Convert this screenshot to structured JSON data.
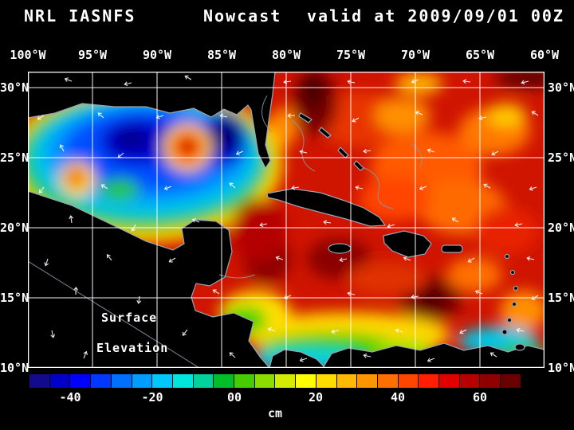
{
  "header": {
    "product": "NRL IASNFS",
    "mode": "Nowcast",
    "valid": "valid at 2009/09/01 00Z"
  },
  "axes": {
    "lon": [
      "100°W",
      "95°W",
      "90°W",
      "85°W",
      "80°W",
      "75°W",
      "70°W",
      "65°W",
      "60°W"
    ],
    "lat": [
      "30°N",
      "25°N",
      "20°N",
      "15°N",
      "10°N"
    ]
  },
  "annotation": {
    "line1": "Surface",
    "line2": "Elevation"
  },
  "colorbar": {
    "unit": "cm",
    "ticks": [
      "-40",
      "-20",
      "00",
      "20",
      "40",
      "60"
    ],
    "colors": [
      "#140a8c",
      "#0000c8",
      "#0000ff",
      "#0038ff",
      "#0070ff",
      "#009cff",
      "#00c8ff",
      "#00e6dc",
      "#00d29c",
      "#00be28",
      "#46cd00",
      "#8cdc00",
      "#d2eb00",
      "#ffff00",
      "#ffdc00",
      "#ffb900",
      "#ff9600",
      "#ff6e00",
      "#ff4600",
      "#ff1e00",
      "#e10000",
      "#b90000",
      "#910000",
      "#690000"
    ]
  },
  "chart_data": {
    "type": "heatmap",
    "title": "NRL IASNFS Nowcast valid at 2009/09/01 00Z",
    "variable": "Surface Elevation",
    "unit": "cm",
    "x_ticks": [
      "100°W",
      "95°W",
      "90°W",
      "85°W",
      "80°W",
      "75°W",
      "70°W",
      "65°W",
      "60°W"
    ],
    "y_ticks": [
      "30°N",
      "25°N",
      "20°N",
      "15°N",
      "10°N"
    ],
    "colorbar_ticks": [
      -40,
      -20,
      0,
      20,
      40,
      60
    ],
    "colorbar_range": [
      -50,
      70
    ],
    "grid": true,
    "notes": "Sea surface elevation nowcast over the Gulf of Mexico, Caribbean Sea and western Atlantic. Gulf of Mexico shows negative elevation (blue, ~-30 to -50 cm) with an embedded warm-core ring (red, ~+40 cm) and a smaller warm spot in the western Gulf; Caribbean and Atlantic are broadly positive (red/orange, ~+30 to +60 cm) with dark maroon maxima near the Florida Straits, south of Hispaniola and east of Nicaragua; a band of near-zero/negative values (yellow-green-cyan) lies along the southern Caribbean coast. Land is masked black with gray coastlines; white 5-degree graticule and white wind/current vectors overlaid."
  }
}
